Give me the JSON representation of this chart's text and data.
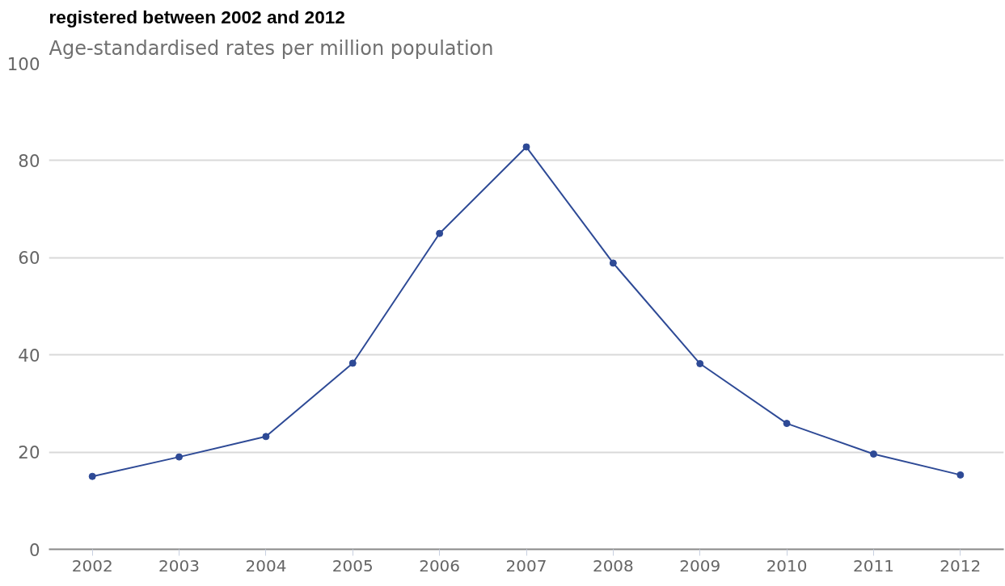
{
  "chart_data": {
    "type": "line",
    "title": "registered between 2002 and 2012",
    "subtitle": "Age-standardised rates per million population",
    "categories": [
      "2002",
      "2003",
      "2004",
      "2005",
      "2006",
      "2007",
      "2008",
      "2009",
      "2010",
      "2011",
      "2012"
    ],
    "series": [
      {
        "color": "#2e4a96",
        "values": [
          15.0,
          19.0,
          23.2,
          38.3,
          65.0,
          82.8,
          58.9,
          38.2,
          25.9,
          19.6,
          15.3
        ]
      }
    ],
    "ylim": [
      0,
      100
    ],
    "yticks": [
      0,
      20,
      40,
      60,
      80,
      100
    ],
    "grid": "y",
    "marker": "circle",
    "line_style": "solid"
  }
}
